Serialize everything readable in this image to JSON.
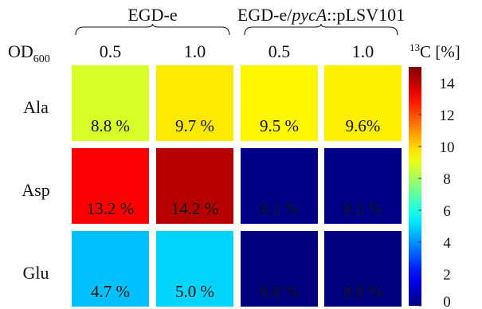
{
  "chart_data": {
    "type": "heatmap",
    "title": "",
    "groups": [
      {
        "label": "EGD-e",
        "label_parts": [
          {
            "text": "EGD-e",
            "italic": false
          }
        ],
        "columns": [
          0,
          1
        ]
      },
      {
        "label": "EGD-e/pycA::pLSV101",
        "label_parts": [
          {
            "text": "EGD-e/",
            "italic": false
          },
          {
            "text": "pycA",
            "italic": true
          },
          {
            "text": "::pLSV101",
            "italic": false
          }
        ],
        "columns": [
          2,
          3
        ]
      }
    ],
    "xlabel": "OD600",
    "xlabel_parts": {
      "main": "OD",
      "sub": "600"
    },
    "columns": [
      "0.5",
      "1.0",
      "0.5",
      "1.0"
    ],
    "rows": [
      "Ala",
      "Asp",
      "Glu"
    ],
    "values": [
      [
        8.8,
        9.7,
        9.5,
        9.6
      ],
      [
        13.2,
        14.2,
        0.1,
        0.1
      ],
      [
        4.7,
        5.0,
        0.0,
        0.0
      ]
    ],
    "cell_labels": [
      [
        "8.8 %",
        "9.7 %",
        "9.5 %",
        "9.6%"
      ],
      [
        "13.2 %",
        "14.2 %",
        "0.1 %",
        "0.1 %"
      ],
      [
        "4.7 %",
        "5.0 %",
        "0.0 %",
        "0.0 %"
      ]
    ],
    "colorbar": {
      "label": "13C [%]",
      "label_parts": {
        "sup": "13",
        "main": "C [%]"
      },
      "range": [
        0,
        15
      ],
      "ticks": [
        0,
        2,
        4,
        6,
        8,
        10,
        12,
        14
      ],
      "colormap": "jet"
    }
  }
}
